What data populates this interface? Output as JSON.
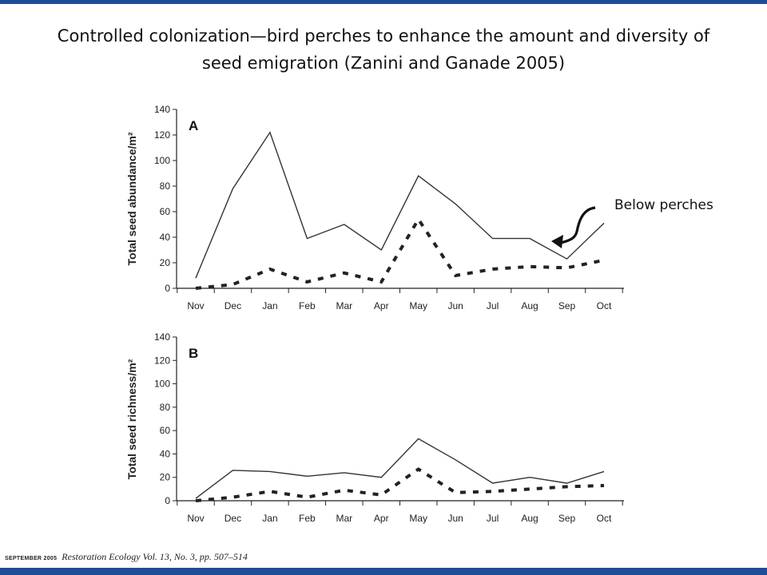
{
  "slide": {
    "title_line1": "Controlled colonization—bird perches to enhance the amount and diversity of",
    "title_line2": "seed emigration (Zanini and Ganade 2005)",
    "callout": "Below perches",
    "footer_month": "SEPTEMBER 2005",
    "footer_journal": "Restoration Ecology Vol. 13, No. 3, pp. 507–514",
    "accent_color": "#1f4e99"
  },
  "chart_data": [
    {
      "type": "line",
      "panel": "A",
      "ylabel": "Total seed abundance/m²",
      "xlabel": "",
      "categories": [
        "Nov",
        "Dec",
        "Jan",
        "Feb",
        "Mar",
        "Apr",
        "May",
        "Jun",
        "Jul",
        "Aug",
        "Sep",
        "Oct"
      ],
      "ylim": [
        0,
        140
      ],
      "yticks": [
        0,
        20,
        40,
        60,
        80,
        100,
        120,
        140
      ],
      "series": [
        {
          "style": "solid",
          "values": [
            8,
            78,
            122,
            39,
            50,
            30,
            88,
            66,
            39,
            39,
            23,
            51
          ]
        },
        {
          "style": "dashed",
          "values": [
            0,
            3,
            15,
            5,
            12,
            5,
            54,
            10,
            15,
            17,
            16,
            22
          ]
        }
      ],
      "annotation": "Below perches"
    },
    {
      "type": "line",
      "panel": "B",
      "ylabel": "Total seed richness/m²",
      "xlabel": "",
      "categories": [
        "Nov",
        "Dec",
        "Jan",
        "Feb",
        "Mar",
        "Apr",
        "May",
        "Jun",
        "Jul",
        "Aug",
        "Sep",
        "Oct"
      ],
      "ylim": [
        0,
        140
      ],
      "yticks": [
        0,
        20,
        40,
        60,
        80,
        100,
        120,
        140
      ],
      "series": [
        {
          "style": "solid",
          "values": [
            2,
            26,
            25,
            21,
            24,
            20,
            53,
            35,
            15,
            20,
            15,
            25
          ]
        },
        {
          "style": "dashed",
          "values": [
            0,
            3,
            8,
            3,
            9,
            5,
            27,
            7,
            8,
            10,
            12,
            13
          ]
        }
      ]
    }
  ]
}
